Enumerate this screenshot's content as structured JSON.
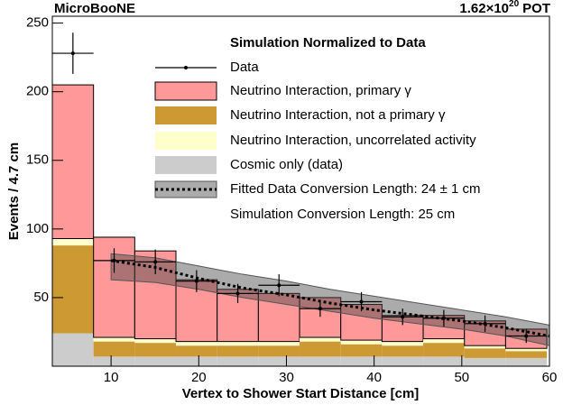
{
  "chart_data": {
    "type": "stacked_histogram",
    "title": "MicroBooNE",
    "pot": {
      "base": "1.62×10",
      "exponent": "20",
      "unit": "POT"
    },
    "legend_title": "Simulation Normalized to Data",
    "xlabel": "Vertex to Shower Start Distance [cm]",
    "ylabel": "Events / 4.7 cm",
    "bins": [
      3.3,
      8.0,
      12.7,
      17.4,
      22.1,
      26.8,
      31.5,
      36.2,
      40.9,
      45.6,
      50.3,
      55.0,
      59.7
    ],
    "series": [
      {
        "name": "Cosmic only (data)",
        "color": "#cccccc",
        "values": [
          24,
          7,
          7,
          7,
          7,
          7,
          7,
          7,
          7,
          7,
          6,
          6
        ]
      },
      {
        "name": "Neutrino Interaction, not a primary γ",
        "color": "#cc9933",
        "values": [
          64,
          11,
          10,
          8,
          8,
          8,
          11,
          9,
          8,
          10,
          7,
          5
        ]
      },
      {
        "name": "Neutrino Interaction, uncorrelated activity",
        "color": "#ffffcc",
        "values": [
          5,
          3,
          3,
          3,
          3,
          3,
          3,
          3,
          3,
          3,
          2,
          2
        ]
      },
      {
        "name": "Neutrino Interaction, primary γ",
        "color": "#ff9999",
        "values": [
          112,
          73,
          64,
          45,
          38,
          35,
          29,
          26,
          19,
          17,
          18,
          14
        ]
      }
    ],
    "data": {
      "name": "Data",
      "color": "#000000",
      "x": [
        5.65,
        10.35,
        15.05,
        19.75,
        24.45,
        29.15,
        33.85,
        38.55,
        43.25,
        47.95,
        52.65,
        57.35
      ],
      "values": [
        228,
        77,
        76,
        62,
        53,
        59,
        42,
        47,
        36,
        35,
        31,
        22
      ],
      "errors": [
        15,
        9,
        9,
        8,
        7,
        8,
        6,
        7,
        6,
        6,
        6,
        5
      ]
    },
    "fit": {
      "name": "Fitted Data Conversion Length:   24 ± 1 cm",
      "x": [
        10,
        15,
        20,
        25,
        30,
        35,
        40,
        45,
        50,
        55,
        60
      ],
      "values": [
        77,
        72,
        64,
        57,
        52,
        46,
        41,
        37,
        33,
        28,
        22
      ],
      "lower": [
        63,
        61,
        56,
        50,
        45,
        40,
        35,
        31,
        27,
        22,
        15
      ],
      "upper": [
        82,
        79,
        73,
        67,
        62,
        56,
        51,
        46,
        41,
        36,
        30
      ]
    },
    "simulation_label": "Simulation Conversion Length:   25 cm",
    "xlim": [
      3.3,
      60
    ],
    "ylim": [
      0,
      255
    ],
    "xticks": [
      10,
      20,
      30,
      40,
      50,
      60
    ],
    "yticks": [
      50,
      100,
      150,
      200,
      250
    ]
  }
}
